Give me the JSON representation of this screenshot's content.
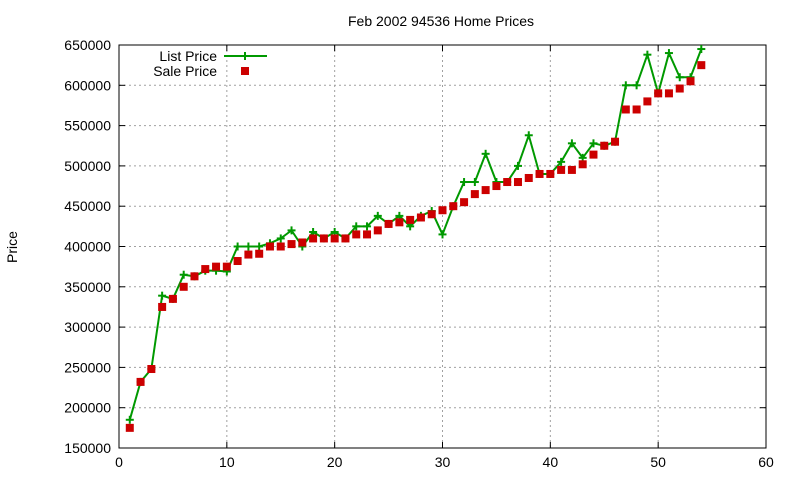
{
  "chart_data": {
    "type": "line",
    "title": "Feb 2002 94536 Home Prices",
    "xlabel": "",
    "ylabel": "Price",
    "xlim": [
      0,
      60
    ],
    "ylim": [
      150000,
      650000
    ],
    "xticks": [
      0,
      10,
      20,
      30,
      40,
      50,
      60
    ],
    "yticks": [
      150000,
      200000,
      250000,
      300000,
      350000,
      400000,
      450000,
      500000,
      550000,
      600000,
      650000
    ],
    "grid": true,
    "legend_position": "top-left",
    "series": [
      {
        "name": "List Price",
        "style": "line+cross",
        "color": "#009900",
        "x": [
          1,
          2,
          3,
          4,
          5,
          6,
          7,
          8,
          9,
          10,
          11,
          12,
          13,
          14,
          15,
          16,
          17,
          18,
          19,
          20,
          21,
          22,
          23,
          24,
          25,
          26,
          27,
          28,
          29,
          30,
          31,
          32,
          33,
          34,
          35,
          36,
          37,
          38,
          39,
          40,
          41,
          42,
          43,
          44,
          45,
          46,
          47,
          48,
          49,
          50,
          51,
          52,
          53,
          54
        ],
        "y": [
          185000,
          232000,
          248000,
          339000,
          335000,
          365000,
          363000,
          370000,
          370000,
          369000,
          400000,
          400000,
          400000,
          404000,
          410000,
          420000,
          400000,
          418000,
          410000,
          418000,
          410000,
          425000,
          425000,
          438000,
          428000,
          438000,
          425000,
          438000,
          444000,
          415000,
          450000,
          480000,
          480000,
          515000,
          480000,
          480000,
          500000,
          538000,
          490000,
          490000,
          505000,
          528000,
          510000,
          528000,
          525000,
          530000,
          600000,
          600000,
          638000,
          590000,
          640000,
          610000,
          610000,
          645000
        ]
      },
      {
        "name": "Sale Price",
        "style": "square",
        "color": "#cc0000",
        "x": [
          1,
          2,
          3,
          4,
          5,
          6,
          7,
          8,
          9,
          10,
          11,
          12,
          13,
          14,
          15,
          16,
          17,
          18,
          19,
          20,
          21,
          22,
          23,
          24,
          25,
          26,
          27,
          28,
          29,
          30,
          31,
          32,
          33,
          34,
          35,
          36,
          37,
          38,
          39,
          40,
          41,
          42,
          43,
          44,
          45,
          46,
          47,
          48,
          49,
          50,
          51,
          52,
          53,
          54
        ],
        "y": [
          175000,
          232000,
          248000,
          325000,
          335000,
          350000,
          363000,
          372000,
          375000,
          375000,
          382000,
          390000,
          391000,
          400000,
          400000,
          403000,
          405000,
          410000,
          410000,
          410000,
          410000,
          415000,
          415000,
          420000,
          428000,
          430000,
          433000,
          436000,
          440000,
          445000,
          450000,
          455000,
          465000,
          470000,
          475000,
          480000,
          480000,
          485000,
          490000,
          490000,
          495000,
          495000,
          502000,
          514000,
          525000,
          530000,
          570000,
          570000,
          580000,
          590000,
          590000,
          596000,
          605000,
          625000
        ]
      }
    ]
  }
}
